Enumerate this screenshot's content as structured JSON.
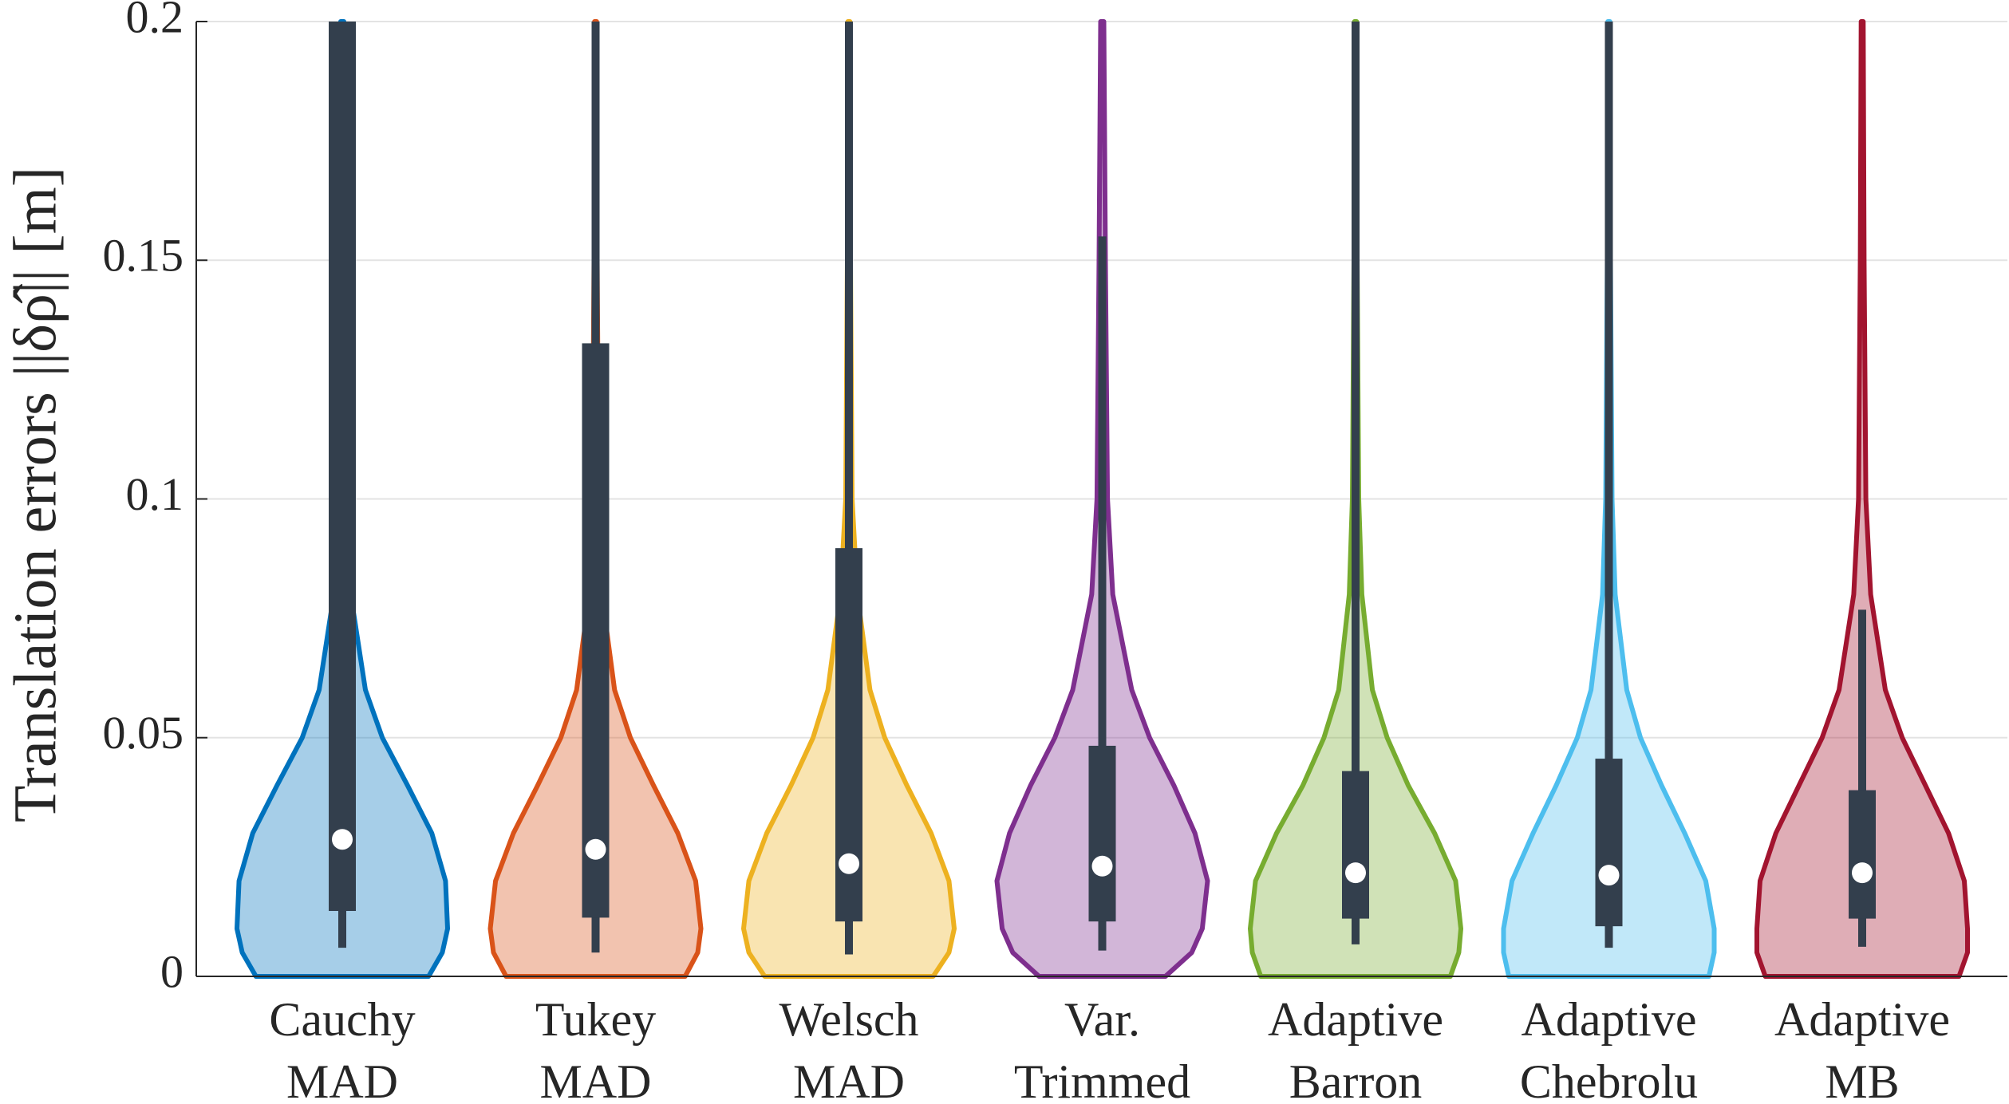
{
  "chart_data": {
    "type": "violin",
    "ylabel": "Translation errors ||δρ̂|| [m]",
    "categories": [
      "Cauchy MAD",
      "Tukey MAD",
      "Welsch MAD",
      "Var. Trimmed",
      "Adaptive Barron",
      "Adaptive Chebrolu",
      "Adaptive MB"
    ],
    "ylim": [
      0,
      0.2
    ],
    "yticks": [
      0,
      0.05,
      0.1,
      0.15,
      0.2
    ],
    "grid": true,
    "box_color": "#333f4d",
    "density_y": [
      0,
      0.005,
      0.01,
      0.02,
      0.03,
      0.04,
      0.05,
      0.06,
      0.08,
      0.1,
      0.15,
      0.2
    ],
    "series": [
      {
        "name": "Cauchy MAD",
        "color": "#0072BD",
        "median": 0.0287,
        "q1": 0.0137,
        "q3": 0.2,
        "whisker_low": 0.006,
        "whisker_high": 0.2,
        "density": [
          0.82,
          0.95,
          1.0,
          0.98,
          0.85,
          0.62,
          0.38,
          0.22,
          0.08,
          0.04,
          0.02,
          0.015
        ]
      },
      {
        "name": "Tukey MAD",
        "color": "#D95319",
        "median": 0.0266,
        "q1": 0.0123,
        "q3": 0.1326,
        "whisker_low": 0.005,
        "whisker_high": 0.2,
        "density": [
          0.85,
          0.97,
          1.0,
          0.95,
          0.78,
          0.55,
          0.33,
          0.18,
          0.06,
          0.03,
          0.015,
          0.01
        ]
      },
      {
        "name": "Welsch MAD",
        "color": "#EDB120",
        "median": 0.0236,
        "q1": 0.0115,
        "q3": 0.0897,
        "whisker_low": 0.0046,
        "whisker_high": 0.2,
        "density": [
          0.8,
          0.95,
          1.0,
          0.95,
          0.78,
          0.55,
          0.34,
          0.2,
          0.08,
          0.03,
          0.015,
          0.01
        ]
      },
      {
        "name": "Var. Trimmed",
        "color": "#7E2F8E",
        "median": 0.0231,
        "q1": 0.0115,
        "q3": 0.0483,
        "whisker_low": 0.0054,
        "whisker_high": 0.155,
        "density": [
          0.6,
          0.85,
          0.95,
          1.0,
          0.88,
          0.68,
          0.45,
          0.28,
          0.1,
          0.05,
          0.03,
          0.015
        ]
      },
      {
        "name": "Adaptive Barron",
        "color": "#77AC30",
        "median": 0.0217,
        "q1": 0.0121,
        "q3": 0.043,
        "whisker_low": 0.0067,
        "whisker_high": 0.2,
        "density": [
          0.9,
          0.98,
          1.0,
          0.95,
          0.75,
          0.5,
          0.3,
          0.16,
          0.06,
          0.03,
          0.015,
          0.01
        ]
      },
      {
        "name": "Adaptive Chebrolu",
        "color": "#4DBEEE",
        "median": 0.0212,
        "q1": 0.0105,
        "q3": 0.0456,
        "whisker_low": 0.006,
        "whisker_high": 0.2,
        "density": [
          0.95,
          1.0,
          1.0,
          0.92,
          0.72,
          0.5,
          0.3,
          0.17,
          0.06,
          0.03,
          0.015,
          0.01
        ]
      },
      {
        "name": "Adaptive MB",
        "color": "#A2142F",
        "median": 0.0217,
        "q1": 0.0121,
        "q3": 0.039,
        "whisker_low": 0.0062,
        "whisker_high": 0.0768,
        "density": [
          0.92,
          1.0,
          1.0,
          0.97,
          0.82,
          0.6,
          0.38,
          0.22,
          0.08,
          0.035,
          0.018,
          0.01
        ]
      }
    ]
  }
}
